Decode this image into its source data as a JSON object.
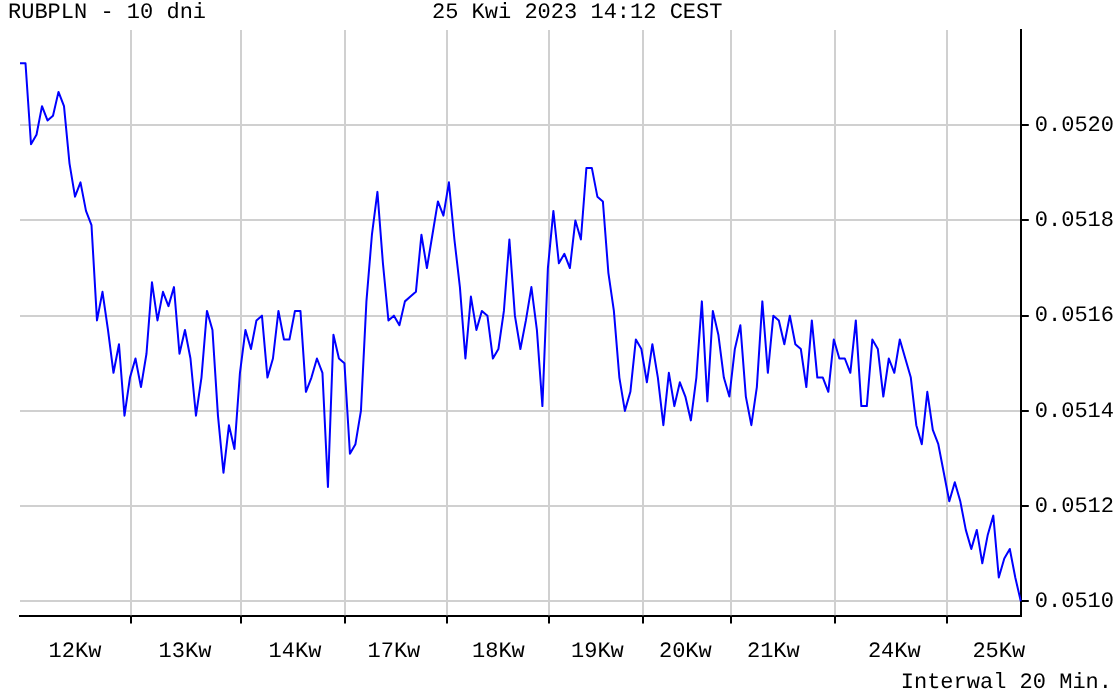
{
  "chart_data": {
    "type": "line",
    "title": "RUBPLN - 10 dni",
    "subtitle": "25 Kwi 2023 14:12 CEST",
    "annotations": [
      "Interwal 20 Min."
    ],
    "categories": [
      null,
      null,
      null,
      null,
      null,
      null,
      null,
      null,
      null,
      null,
      "12Kw",
      null,
      null,
      null,
      null,
      null,
      null,
      null,
      null,
      null,
      null,
      null,
      null,
      null,
      null,
      null,
      null,
      null,
      null,
      null,
      "13Kw",
      null,
      null,
      null,
      null,
      null,
      null,
      null,
      null,
      null,
      null,
      null,
      null,
      null,
      null,
      null,
      null,
      null,
      null,
      null,
      "14Kw",
      null,
      null,
      null,
      null,
      null,
      null,
      null,
      null,
      null,
      null,
      null,
      null,
      null,
      null,
      null,
      null,
      null,
      "17Kw",
      null,
      null,
      null,
      null,
      null,
      null,
      null,
      null,
      null,
      null,
      null,
      null,
      null,
      null,
      null,
      null,
      null,
      null,
      "18Kw",
      null,
      null,
      null,
      null,
      null,
      null,
      null,
      null,
      null,
      null,
      null,
      null,
      null,
      null,
      null,
      null,
      null,
      "19Kw",
      null,
      null,
      null,
      null,
      null,
      null,
      null,
      null,
      null,
      null,
      null,
      null,
      null,
      null,
      null,
      "20Kw",
      null,
      null,
      null,
      null,
      null,
      null,
      null,
      null,
      null,
      null,
      null,
      null,
      null,
      null,
      null,
      "21Kw",
      null,
      null,
      null,
      null,
      null,
      null,
      null,
      null,
      null,
      null,
      null,
      null,
      null,
      null,
      null,
      null,
      null,
      null,
      null,
      null,
      null,
      "24Kw",
      null,
      null,
      null,
      null,
      null,
      null,
      null,
      null,
      null,
      null,
      null,
      null,
      null,
      null,
      null,
      null,
      null,
      null,
      "25Kw",
      null,
      null,
      null,
      null
    ],
    "series": [
      {
        "color": "#0000ff",
        "values": [
          0.05213,
          0.05213,
          0.05196,
          0.05198,
          0.05204,
          0.05201,
          0.05202,
          0.05207,
          0.05204,
          0.05192,
          0.05185,
          0.05188,
          0.05182,
          0.05179,
          0.05159,
          0.05165,
          0.05157,
          0.05148,
          0.05154,
          0.05139,
          0.05147,
          0.05151,
          0.05145,
          0.05152,
          0.05167,
          0.05159,
          0.05165,
          0.05162,
          0.05166,
          0.05152,
          0.05157,
          0.05151,
          0.05139,
          0.05147,
          0.05161,
          0.05157,
          0.05139,
          0.05127,
          0.05137,
          0.05132,
          0.05148,
          0.05157,
          0.05153,
          0.05159,
          0.0516,
          0.05147,
          0.05151,
          0.05161,
          0.05155,
          0.05155,
          0.05161,
          0.05161,
          0.05144,
          0.05147,
          0.05151,
          0.05148,
          0.05124,
          0.05156,
          0.05151,
          0.0515,
          0.05131,
          0.05133,
          0.0514,
          0.05163,
          0.05177,
          0.05186,
          0.05171,
          0.05159,
          0.0516,
          0.05158,
          0.05163,
          0.05164,
          0.05165,
          0.05177,
          0.0517,
          0.05177,
          0.05184,
          0.05181,
          0.05188,
          0.05176,
          0.05166,
          0.05151,
          0.05164,
          0.05157,
          0.05161,
          0.0516,
          0.05151,
          0.05153,
          0.05161,
          0.05176,
          0.0516,
          0.05153,
          0.05159,
          0.05166,
          0.05157,
          0.05141,
          0.0517,
          0.05182,
          0.05171,
          0.05173,
          0.0517,
          0.0518,
          0.05176,
          0.05191,
          0.05191,
          0.05185,
          0.05184,
          0.05169,
          0.05161,
          0.05147,
          0.0514,
          0.05144,
          0.05155,
          0.05153,
          0.05146,
          0.05154,
          0.05147,
          0.05137,
          0.05148,
          0.05141,
          0.05146,
          0.05143,
          0.05138,
          0.05147,
          0.05163,
          0.05142,
          0.05161,
          0.05156,
          0.05147,
          0.05143,
          0.05153,
          0.05158,
          0.05143,
          0.05137,
          0.05145,
          0.05163,
          0.05148,
          0.0516,
          0.05159,
          0.05154,
          0.0516,
          0.05154,
          0.05153,
          0.05145,
          0.05159,
          0.05147,
          0.05147,
          0.05144,
          0.05155,
          0.05151,
          0.05151,
          0.05148,
          0.05159,
          0.05141,
          0.05141,
          0.05155,
          0.05153,
          0.05143,
          0.05151,
          0.05148,
          0.05155,
          0.05151,
          0.05147,
          0.05137,
          0.05133,
          0.05144,
          0.05136,
          0.05133,
          0.05127,
          0.05121,
          0.05125,
          0.05121,
          0.05115,
          0.05111,
          0.05115,
          0.05108,
          0.05114,
          0.05118,
          0.05105,
          0.05109,
          0.05111,
          0.05105,
          0.051
        ]
      }
    ],
    "ylim": [
      0.05097,
      0.0522
    ],
    "yticks": [
      {
        "value": 0.051,
        "label": "0.0510"
      },
      {
        "value": 0.0512,
        "label": "0.0512"
      },
      {
        "value": 0.0514,
        "label": "0.0514"
      },
      {
        "value": 0.0516,
        "label": "0.0516"
      },
      {
        "value": 0.0518,
        "label": "0.0518"
      },
      {
        "value": 0.052,
        "label": "0.0520"
      }
    ],
    "grid": true,
    "marker": "none",
    "line_style": "solid"
  }
}
